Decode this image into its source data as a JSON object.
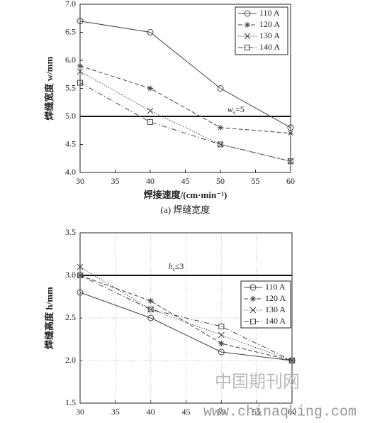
{
  "chart_data": [
    {
      "type": "line",
      "title": "(a) 焊缝宽度",
      "y_label": "焊缝宽度 w/mm",
      "x_label": "焊接速度/(cm·min⁻¹)",
      "x": [
        30,
        40,
        50,
        60
      ],
      "xlim": [
        30,
        60
      ],
      "xticks": [
        30,
        35,
        40,
        45,
        50,
        55,
        60
      ],
      "ylim": [
        4,
        7
      ],
      "yticks": [
        {
          "value": 4,
          "label": "4.0"
        },
        4.5,
        {
          "value": 5,
          "label": "5.0"
        },
        5.5,
        {
          "value": 6,
          "label": "6.0"
        },
        6.5,
        {
          "value": 7,
          "label": "7.0"
        }
      ],
      "grid": false,
      "legend": "upper right",
      "reference": {
        "value": 5,
        "symbol": "w",
        "subscript": "s",
        "text": "=5"
      },
      "series": [
        {
          "name": "110 A",
          "color": "#444444",
          "style": "solid",
          "marker": "circle",
          "values": [
            6.7,
            6.5,
            5.5,
            4.8
          ]
        },
        {
          "name": "120 A",
          "color": "#444444",
          "style": "dashed",
          "marker": "star",
          "values": [
            5.9,
            5.5,
            4.8,
            4.7
          ]
        },
        {
          "name": "130 A",
          "color": "#444444",
          "style": "dotted",
          "marker": "x",
          "values": [
            5.8,
            5.1,
            4.5,
            4.2
          ]
        },
        {
          "name": "140 A",
          "color": "#444444",
          "style": "dashdot",
          "marker": "square",
          "values": [
            5.6,
            4.9,
            4.5,
            4.2
          ]
        }
      ]
    },
    {
      "type": "line",
      "y_label": "焊缝高度 h/mm",
      "x": [
        30,
        40,
        50,
        60
      ],
      "xlim": [
        30,
        60
      ],
      "xticks": [
        30,
        35,
        40,
        45,
        50,
        55,
        60
      ],
      "ylim": [
        1.5,
        3.5
      ],
      "yticks": [
        1.5,
        {
          "value": 2,
          "label": "2.0"
        },
        2.5,
        {
          "value": 3,
          "label": "3.0"
        },
        3.5
      ],
      "grid": true,
      "legend": "center right",
      "reference": {
        "value": 3,
        "symbol": "h",
        "subscript": "s",
        "text": "≤3"
      },
      "series": [
        {
          "name": "110 A",
          "color": "#444444",
          "style": "solid",
          "marker": "circle",
          "values": [
            2.8,
            2.5,
            2.1,
            2.0
          ]
        },
        {
          "name": "120 A",
          "color": "#444444",
          "style": "dashed",
          "marker": "star",
          "values": [
            3.0,
            2.7,
            2.2,
            2.0
          ]
        },
        {
          "name": "130 A",
          "color": "#444444",
          "style": "dotted",
          "marker": "x",
          "values": [
            3.1,
            2.6,
            2.3,
            2.0
          ]
        },
        {
          "name": "140 A",
          "color": "#444444",
          "style": "dashdot",
          "marker": "square",
          "values": [
            3.0,
            2.6,
            2.4,
            2.0
          ]
        }
      ]
    }
  ],
  "watermark": {
    "title": "中国期刊网",
    "url": "www.chinaqking.com"
  }
}
